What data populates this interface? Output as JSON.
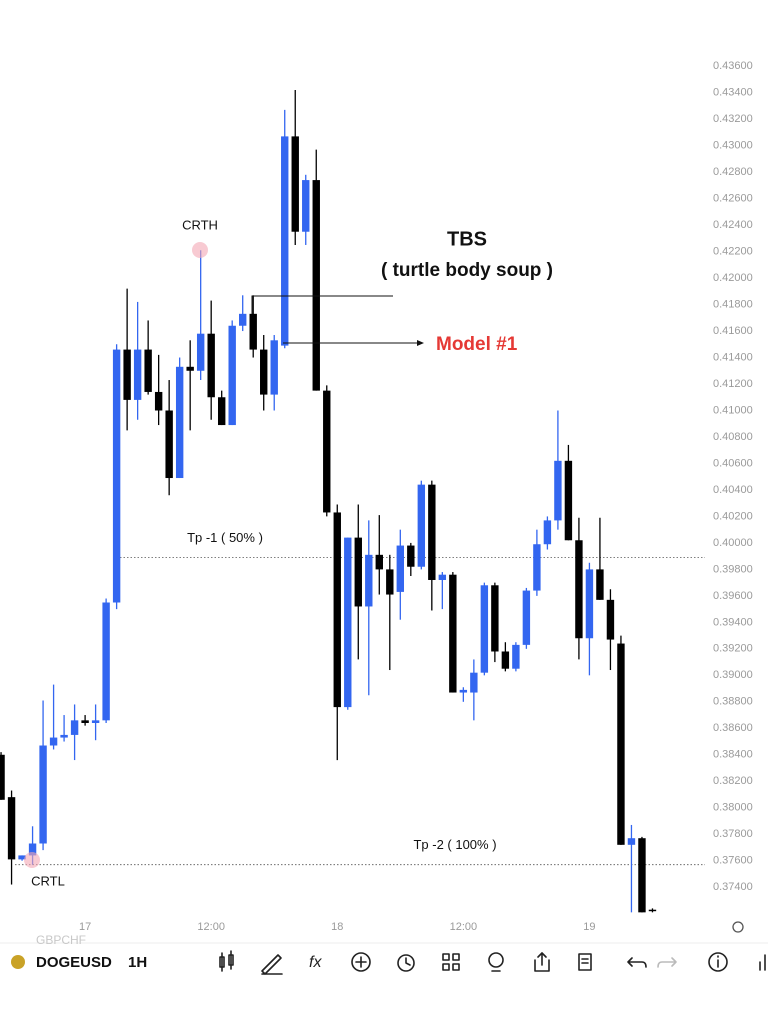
{
  "chart_data": {
    "type": "candlestick",
    "up_color": "#3366f0",
    "down_color": "#000000",
    "candles": [
      [
        0.384,
        0.3842,
        0.3806,
        0.3806
      ],
      [
        0.3808,
        0.3813,
        0.3742,
        0.3761
      ],
      [
        0.3761,
        0.3764,
        0.376,
        0.3764
      ],
      [
        0.3764,
        0.3786,
        0.3757,
        0.3773
      ],
      [
        0.3773,
        0.3881,
        0.3768,
        0.3847
      ],
      [
        0.3847,
        0.3893,
        0.3844,
        0.3853
      ],
      [
        0.3853,
        0.387,
        0.385,
        0.3855
      ],
      [
        0.3855,
        0.3878,
        0.3836,
        0.3866
      ],
      [
        0.3866,
        0.387,
        0.3862,
        0.3864
      ],
      [
        0.3864,
        0.3878,
        0.3851,
        0.3866
      ],
      [
        0.3866,
        0.3958,
        0.3864,
        0.3955
      ],
      [
        0.3955,
        0.415,
        0.395,
        0.4146
      ],
      [
        0.4146,
        0.4192,
        0.4085,
        0.4108
      ],
      [
        0.4108,
        0.4182,
        0.4093,
        0.4146
      ],
      [
        0.4146,
        0.4168,
        0.4112,
        0.4114
      ],
      [
        0.4114,
        0.4142,
        0.4089,
        0.41
      ],
      [
        0.41,
        0.4123,
        0.4036,
        0.4049
      ],
      [
        0.4049,
        0.414,
        0.4049,
        0.4133
      ],
      [
        0.4133,
        0.4153,
        0.4085,
        0.413
      ],
      [
        0.413,
        0.4221,
        0.4123,
        0.4158
      ],
      [
        0.4158,
        0.4183,
        0.4093,
        0.411
      ],
      [
        0.411,
        0.4115,
        0.4089,
        0.4089
      ],
      [
        0.4089,
        0.4168,
        0.4089,
        0.4164
      ],
      [
        0.4164,
        0.4187,
        0.416,
        0.4173
      ],
      [
        0.4173,
        0.4187,
        0.414,
        0.4146
      ],
      [
        0.4146,
        0.4157,
        0.41,
        0.4112
      ],
      [
        0.4112,
        0.4157,
        0.41,
        0.4153
      ],
      [
        0.4149,
        0.4327,
        0.4147,
        0.4307
      ],
      [
        0.4307,
        0.4342,
        0.4225,
        0.4235
      ],
      [
        0.4235,
        0.4278,
        0.4225,
        0.4274
      ],
      [
        0.4274,
        0.4297,
        0.4115,
        0.4115
      ],
      [
        0.4115,
        0.4119,
        0.402,
        0.4023
      ],
      [
        0.4023,
        0.4029,
        0.3836,
        0.3876
      ],
      [
        0.3876,
        0.4004,
        0.3874,
        0.4004
      ],
      [
        0.4004,
        0.4029,
        0.3912,
        0.3952
      ],
      [
        0.3952,
        0.4017,
        0.3885,
        0.3991
      ],
      [
        0.3991,
        0.4021,
        0.3961,
        0.398
      ],
      [
        0.398,
        0.3991,
        0.3904,
        0.3961
      ],
      [
        0.3963,
        0.401,
        0.3942,
        0.3998
      ],
      [
        0.3998,
        0.4,
        0.3975,
        0.3982
      ],
      [
        0.3982,
        0.4047,
        0.398,
        0.4044
      ],
      [
        0.4044,
        0.4047,
        0.3949,
        0.3972
      ],
      [
        0.3972,
        0.3978,
        0.395,
        0.3976
      ],
      [
        0.3976,
        0.3978,
        0.3887,
        0.3887
      ],
      [
        0.3887,
        0.3891,
        0.388,
        0.3889
      ],
      [
        0.3887,
        0.3912,
        0.3866,
        0.3902
      ],
      [
        0.3902,
        0.397,
        0.39,
        0.3968
      ],
      [
        0.3968,
        0.397,
        0.391,
        0.3918
      ],
      [
        0.3918,
        0.3925,
        0.3903,
        0.3905
      ],
      [
        0.3905,
        0.3925,
        0.3903,
        0.3923
      ],
      [
        0.3923,
        0.3966,
        0.392,
        0.3964
      ],
      [
        0.3964,
        0.401,
        0.396,
        0.3999
      ],
      [
        0.3999,
        0.402,
        0.3995,
        0.4017
      ],
      [
        0.4017,
        0.41,
        0.401,
        0.4062
      ],
      [
        0.4062,
        0.4074,
        0.4002,
        0.4002
      ],
      [
        0.4002,
        0.4019,
        0.3912,
        0.3928
      ],
      [
        0.3928,
        0.3985,
        0.39,
        0.398
      ],
      [
        0.398,
        0.4019,
        0.3957,
        0.3957
      ],
      [
        0.3957,
        0.3965,
        0.3904,
        0.3927
      ],
      [
        0.3924,
        0.393,
        0.3772,
        0.3772
      ],
      [
        0.3772,
        0.3787,
        0.3721,
        0.3777
      ],
      [
        0.3777,
        0.3778,
        0.3721,
        0.3721
      ],
      [
        0.3723,
        0.3724,
        0.3721,
        0.3722
      ]
    ],
    "xlim": [
      -0.1,
      67
    ],
    "xticks": [
      {
        "value": 8,
        "label": "17"
      },
      {
        "value": 20,
        "label": "12:00"
      },
      {
        "value": 32,
        "label": "18"
      },
      {
        "value": 44,
        "label": "12:00"
      },
      {
        "value": 56,
        "label": "19"
      }
    ],
    "ylim": [
      0.3719,
      0.441
    ],
    "yticks": [
      {
        "value": 0.436,
        "label": "0.43600"
      },
      {
        "value": 0.434,
        "label": "0.43400"
      },
      {
        "value": 0.432,
        "label": "0.43200"
      },
      {
        "value": 0.43,
        "label": "0.43000"
      },
      {
        "value": 0.428,
        "label": "0.42800"
      },
      {
        "value": 0.426,
        "label": "0.42600"
      },
      {
        "value": 0.424,
        "label": "0.42400"
      },
      {
        "value": 0.422,
        "label": "0.42200"
      },
      {
        "value": 0.42,
        "label": "0.42000"
      },
      {
        "value": 0.418,
        "label": "0.41800"
      },
      {
        "value": 0.416,
        "label": "0.41600"
      },
      {
        "value": 0.414,
        "label": "0.41400"
      },
      {
        "value": 0.412,
        "label": "0.41200"
      },
      {
        "value": 0.41,
        "label": "0.41000"
      },
      {
        "value": 0.408,
        "label": "0.40800"
      },
      {
        "value": 0.406,
        "label": "0.40600"
      },
      {
        "value": 0.404,
        "label": "0.40400"
      },
      {
        "value": 0.402,
        "label": "0.40200"
      },
      {
        "value": 0.4,
        "label": "0.40000"
      },
      {
        "value": 0.398,
        "label": "0.39800"
      },
      {
        "value": 0.396,
        "label": "0.39600"
      },
      {
        "value": 0.394,
        "label": "0.39400"
      },
      {
        "value": 0.392,
        "label": "0.39200"
      },
      {
        "value": 0.39,
        "label": "0.39000"
      },
      {
        "value": 0.388,
        "label": "0.38800"
      },
      {
        "value": 0.386,
        "label": "0.38600"
      },
      {
        "value": 0.384,
        "label": "0.38400"
      },
      {
        "value": 0.382,
        "label": "0.38200"
      },
      {
        "value": 0.38,
        "label": "0.38000"
      },
      {
        "value": 0.378,
        "label": "0.37800"
      },
      {
        "value": 0.376,
        "label": "0.37600"
      },
      {
        "value": 0.374,
        "label": "0.37400"
      }
    ],
    "grid": false,
    "levels": [
      {
        "label": "Tp -1 ( 50% )",
        "value": 0.3989
      },
      {
        "label": "Tp -2 ( 100% )",
        "value": 0.3757
      }
    ],
    "annotations": {
      "crth": "CRTH",
      "crtl": "CRTL",
      "tbs": "TBS",
      "tbs_sub": "( turtle body soup )",
      "model": "Model #1"
    }
  },
  "toolbar": {
    "watermark": "GBPCHF",
    "symbol": "DOGEUSD",
    "interval": "1H"
  }
}
